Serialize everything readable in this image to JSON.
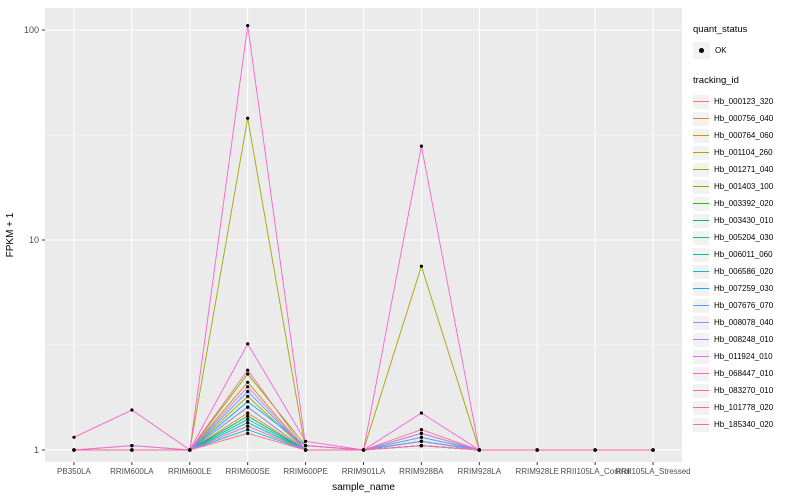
{
  "figure": {
    "panel_bg": "#EBEBEB",
    "grid_color": "#FFFFFF",
    "tick_color": "#333333",
    "tick_label_color": "#4D4D4D",
    "point_color": "#000000"
  },
  "chart_data": {
    "type": "line",
    "title": "",
    "xlabel": "sample_name",
    "ylabel": "FPKM + 1",
    "y_scale": "log10",
    "ylim": [
      1,
      120
    ],
    "y_ticks": [
      "1",
      "10",
      "100"
    ],
    "y_tick_values": [
      1,
      10,
      100
    ],
    "y_minor_values": [
      3.1623,
      31.623
    ],
    "grid": true,
    "legend_position": "right",
    "legend_titles": {
      "quant_status": "quant_status",
      "tracking_id": "tracking_id"
    },
    "quant_items": [
      {
        "label": "OK"
      }
    ],
    "categories": [
      "PB350LA",
      "RRIM600LA",
      "RRIM600LE",
      "RRIM600SE",
      "RRIM600PE",
      "RRIM901LA",
      "RRIM928BA",
      "RRIM928LA",
      "RRIM928LE",
      "RRII105LA_Control",
      "RRII105LA_Stressed"
    ],
    "series": [
      {
        "name": "Hb_000123_320",
        "color": "#F8766D",
        "values": [
          1,
          1,
          1,
          1.3,
          1,
          1,
          1.1,
          1,
          1,
          1,
          1
        ]
      },
      {
        "name": "Hb_000756_040",
        "color": "#E88526",
        "values": [
          1,
          1,
          1,
          1.5,
          1,
          1,
          1.05,
          1,
          1,
          1,
          1
        ]
      },
      {
        "name": "Hb_000764_060",
        "color": "#D39200",
        "values": [
          1,
          1,
          1,
          2.1,
          1,
          1,
          1.1,
          1,
          1,
          1,
          1
        ]
      },
      {
        "name": "Hb_001104_260",
        "color": "#B79F00",
        "values": [
          1,
          1,
          1,
          1.8,
          1,
          1,
          1.15,
          1,
          1,
          1,
          1
        ]
      },
      {
        "name": "Hb_001271_040",
        "color": "#A3A500",
        "values": [
          1,
          1.05,
          1,
          38,
          1,
          1,
          7.5,
          1,
          1,
          1,
          1
        ]
      },
      {
        "name": "Hb_001403_100",
        "color": "#7CAE00",
        "values": [
          1,
          1,
          1,
          2.3,
          1.05,
          1,
          1.2,
          1,
          1,
          1,
          1
        ]
      },
      {
        "name": "Hb_003392_020",
        "color": "#39B600",
        "values": [
          1,
          1,
          1,
          1.6,
          1,
          1,
          1.1,
          1,
          1,
          1,
          1
        ]
      },
      {
        "name": "Hb_003430_010",
        "color": "#00BB4E",
        "values": [
          1,
          1,
          1,
          1.45,
          1,
          1,
          1.05,
          1,
          1,
          1,
          1
        ]
      },
      {
        "name": "Hb_005204_030",
        "color": "#00C087",
        "values": [
          1,
          1,
          1,
          1.35,
          1,
          1,
          1.05,
          1,
          1,
          1,
          1
        ]
      },
      {
        "name": "Hb_006011_060",
        "color": "#00C0B2",
        "values": [
          1,
          1,
          1,
          1.25,
          1,
          1,
          1.05,
          1,
          1,
          1,
          1
        ]
      },
      {
        "name": "Hb_006586_020",
        "color": "#00BCD8",
        "values": [
          1,
          1,
          1,
          1.4,
          1,
          1,
          1.1,
          1,
          1,
          1,
          1
        ]
      },
      {
        "name": "Hb_007259_030",
        "color": "#00B0F6",
        "values": [
          1,
          1,
          1,
          1.7,
          1.05,
          1,
          1.1,
          1,
          1,
          1,
          1
        ]
      },
      {
        "name": "Hb_007676_070",
        "color": "#619CFF",
        "values": [
          1,
          1,
          1,
          1.9,
          1,
          1,
          1.15,
          1,
          1,
          1,
          1
        ]
      },
      {
        "name": "Hb_008078_040",
        "color": "#9590FF",
        "values": [
          1,
          1,
          1,
          1.6,
          1,
          1,
          1.1,
          1,
          1,
          1,
          1
        ]
      },
      {
        "name": "Hb_008248_010",
        "color": "#C77CFF",
        "values": [
          1,
          1,
          1,
          2.0,
          1,
          1,
          1.2,
          1,
          1,
          1,
          1
        ]
      },
      {
        "name": "Hb_011924_010",
        "color": "#E76BF3",
        "values": [
          1,
          1.05,
          1,
          1.3,
          1,
          1,
          1.05,
          1,
          1,
          1,
          1
        ]
      },
      {
        "name": "Hb_068447_010",
        "color": "#FA62DB",
        "values": [
          1,
          1,
          1,
          3.2,
          1.1,
          1,
          1.5,
          1,
          1,
          1,
          1
        ]
      },
      {
        "name": "Hb_083270_010",
        "color": "#FF61C9",
        "values": [
          1.15,
          1.55,
          1,
          105,
          1.05,
          1,
          28,
          1,
          1,
          1,
          1
        ]
      },
      {
        "name": "Hb_101778_020",
        "color": "#FF6A98",
        "values": [
          1,
          1,
          1,
          2.4,
          1,
          1,
          1.25,
          1,
          1,
          1,
          1
        ]
      },
      {
        "name": "Hb_185340_020",
        "color": "#FF6C91",
        "values": [
          1,
          1,
          1,
          1.2,
          1,
          1,
          1.05,
          1,
          1,
          1,
          1
        ]
      }
    ]
  }
}
